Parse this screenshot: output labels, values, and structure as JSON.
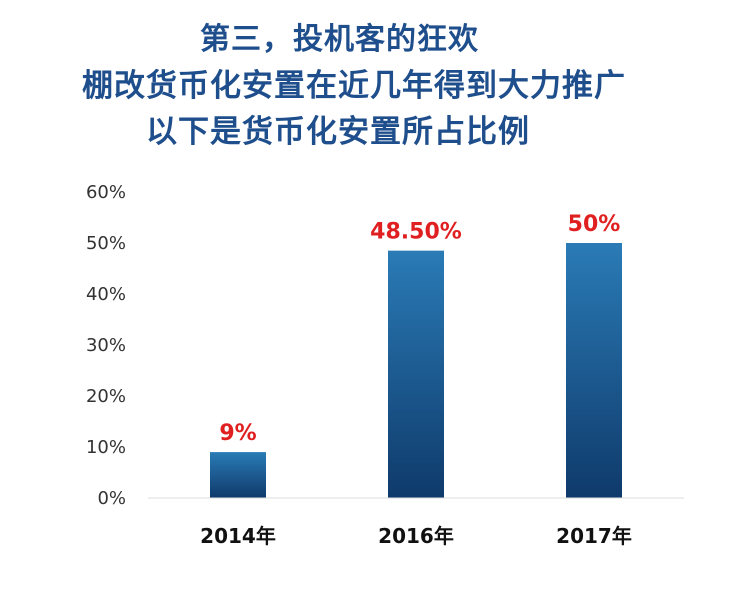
{
  "title_lines": [
    "第三，投机客的狂欢",
    "棚改货币化安置在近几年得到大力推广",
    "以下是货币化安置所占比例"
  ],
  "colors": {
    "title": "#1f4e8c",
    "bar_top": "#2a7bb6",
    "bar_bottom": "#0f3a6b",
    "data_label": "#e02020",
    "grid": "#dddddd"
  },
  "chart_data": {
    "type": "bar",
    "categories": [
      "2014年",
      "2016年",
      "2017年"
    ],
    "values": [
      9,
      48.5,
      50
    ],
    "data_labels": [
      "9%",
      "48.50%",
      "50%"
    ],
    "yticks": [
      "0%",
      "10%",
      "20%",
      "30%",
      "40%",
      "50%",
      "60%"
    ],
    "ylim": [
      0,
      60
    ],
    "grid": false,
    "legend": "none"
  }
}
